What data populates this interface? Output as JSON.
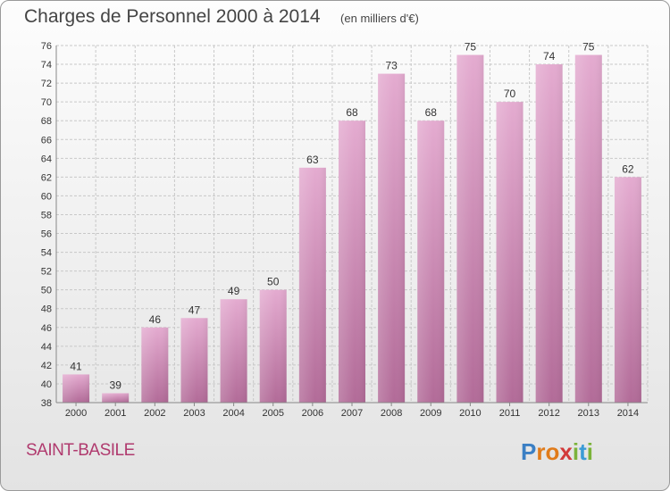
{
  "header": {
    "title": "Charges de Personnel 2000 à 2014",
    "unit": "(en milliers d'€)"
  },
  "footer": {
    "commune": "SAINT-BASILE",
    "logo_letters": [
      "P",
      "r",
      "o",
      "x",
      "i",
      "t",
      "i"
    ],
    "logo_colors": [
      "#3b7fc4",
      "#e07b1a",
      "#e07b1a",
      "#d23a3a",
      "#7bb33a",
      "#3b9bd6",
      "#7bb33a"
    ]
  },
  "colors": {
    "bar_top": "#e4abd0",
    "bar_bottom": "#b26b98",
    "grid": "#c8c8c8",
    "axis": "#888888",
    "text": "#333333"
  },
  "chart_data": {
    "type": "bar",
    "title": "Charges de Personnel 2000 à 2014",
    "subtitle": "(en milliers d'€)",
    "xlabel": "",
    "ylabel": "",
    "categories": [
      "2000",
      "2001",
      "2002",
      "2003",
      "2004",
      "2005",
      "2006",
      "2007",
      "2008",
      "2009",
      "2010",
      "2011",
      "2012",
      "2013",
      "2014"
    ],
    "values": [
      41,
      39,
      46,
      47,
      49,
      50,
      63,
      68,
      73,
      68,
      75,
      70,
      74,
      75,
      62
    ],
    "ylim": [
      38,
      76
    ],
    "yticks": [
      38,
      40,
      42,
      44,
      46,
      48,
      50,
      52,
      54,
      56,
      58,
      60,
      62,
      64,
      66,
      68,
      70,
      72,
      74,
      76
    ],
    "grid": true,
    "legend": "none"
  }
}
